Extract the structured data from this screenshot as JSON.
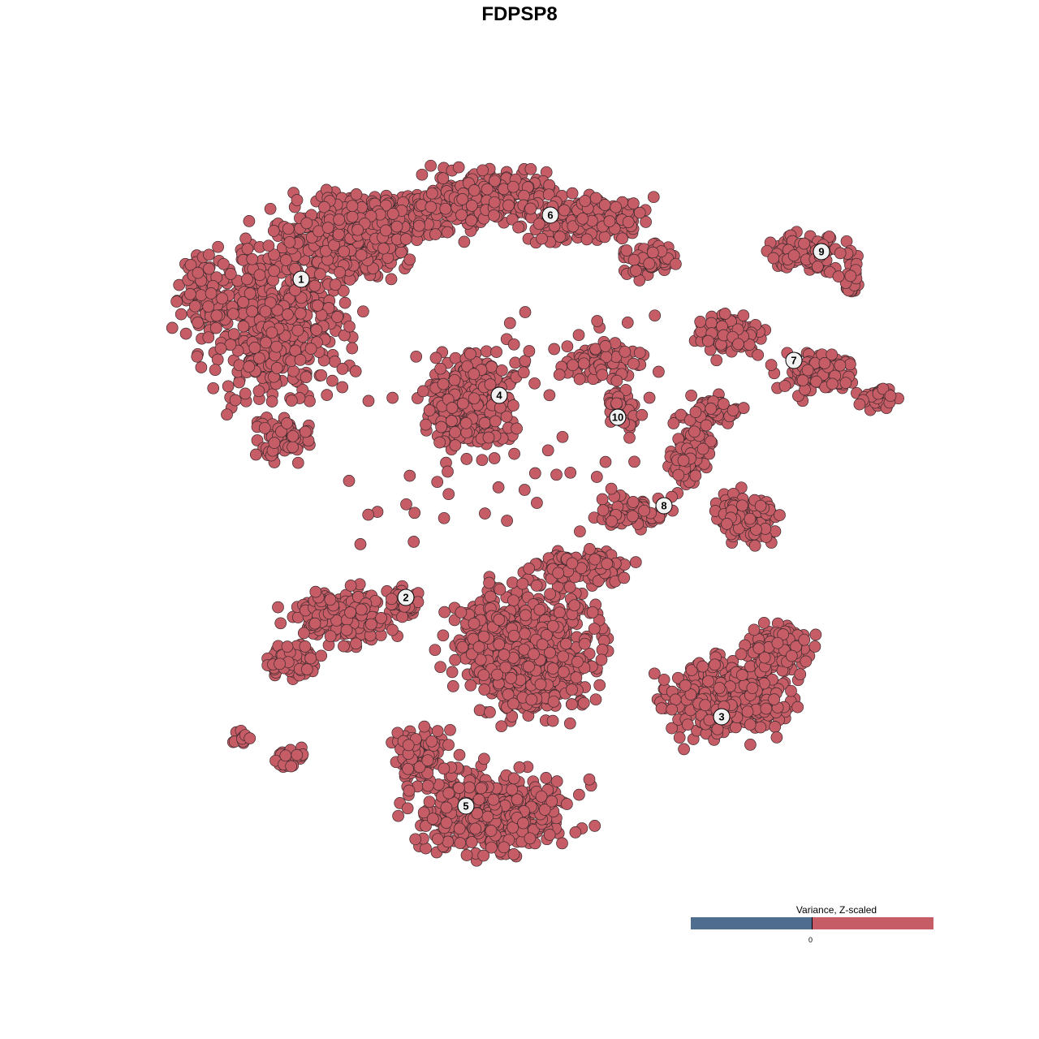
{
  "chart_data": {
    "type": "scatter",
    "title": "FDPSP8",
    "xlabel": "",
    "ylabel": "",
    "grid": false,
    "point_color": "#c55c66",
    "point_stroke": "#3b2a2c",
    "cluster_labels": [
      "1",
      "2",
      "3",
      "4",
      "5",
      "6",
      "7",
      "8",
      "9",
      "10"
    ],
    "legend": {
      "title": "Variance, Z-scaled",
      "tick_label": "0",
      "low_color": "#4f6d8f",
      "high_color": "#c55c66",
      "placement": "bottom-right"
    }
  }
}
